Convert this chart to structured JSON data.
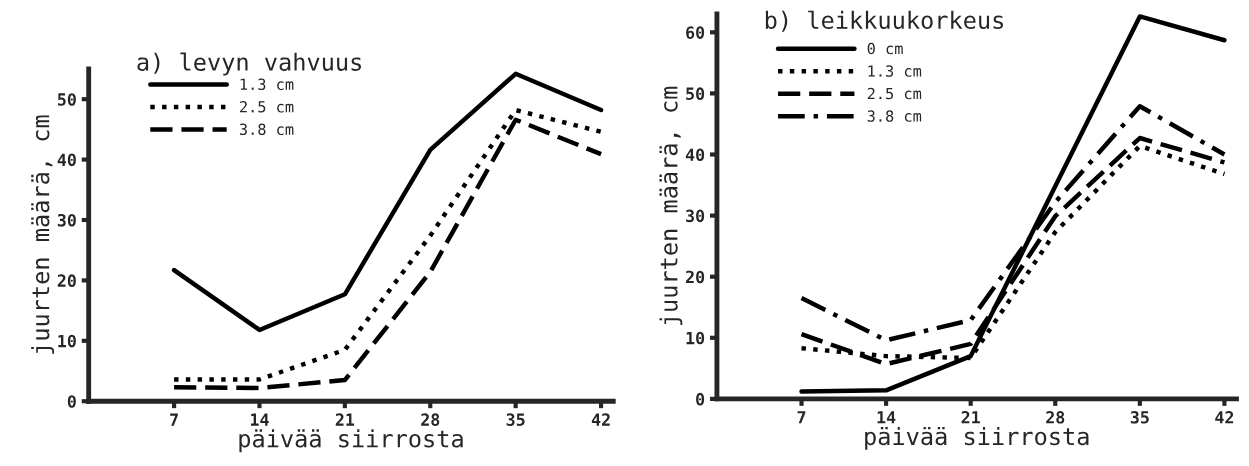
{
  "chart_data": [
    {
      "type": "line",
      "title": "a) levyn vahvuus",
      "xlabel": "päivää siirrosta",
      "ylabel": "juurten määrä, cm",
      "x": [
        7,
        14,
        21,
        28,
        35,
        42
      ],
      "xlim": [
        0,
        43
      ],
      "xticks": [
        7,
        14,
        21,
        28,
        35,
        42
      ],
      "ylim": [
        0,
        55
      ],
      "yticks": [
        0,
        10,
        20,
        30,
        40,
        50
      ],
      "legend": "top left",
      "grid": false,
      "series": [
        {
          "name": "1.3 cm",
          "color": "#000000",
          "line_style": "solid",
          "values": [
            21.7,
            11.8,
            17.7,
            41.6,
            54.2,
            48.2
          ]
        },
        {
          "name": "2.5 cm",
          "color": "#000000",
          "line_style": "dotted",
          "values": [
            3.6,
            3.6,
            8.5,
            27.4,
            48.2,
            44.6
          ]
        },
        {
          "name": "3.8 cm",
          "color": "#000000",
          "line_style": "dashed",
          "values": [
            2.3,
            2.2,
            3.5,
            21.4,
            46.6,
            40.9
          ]
        }
      ]
    },
    {
      "type": "line",
      "title": "b) leikkuukorkeus",
      "xlabel": "päivää siirrosta",
      "ylabel": "juurten määrä, cm",
      "x": [
        7,
        14,
        21,
        28,
        35,
        42
      ],
      "xlim": [
        0,
        43
      ],
      "xticks": [
        7,
        14,
        21,
        28,
        35,
        42
      ],
      "ylim": [
        0,
        63
      ],
      "yticks": [
        0,
        10,
        20,
        30,
        40,
        50,
        60
      ],
      "legend": "top left",
      "grid": false,
      "series": [
        {
          "name": "0 cm",
          "color": "#000000",
          "line_style": "solid",
          "values": [
            1.2,
            1.4,
            7.0,
            34.8,
            62.6,
            58.7
          ]
        },
        {
          "name": "1.3 cm",
          "color": "#000000",
          "line_style": "dotted",
          "values": [
            8.3,
            7.0,
            6.7,
            27.3,
            41.4,
            36.8
          ]
        },
        {
          "name": "2.5 cm",
          "color": "#000000",
          "line_style": "dashed",
          "values": [
            10.6,
            5.7,
            9.0,
            29.9,
            42.7,
            38.7
          ]
        },
        {
          "name": "3.8 cm",
          "color": "#000000",
          "line_style": "dashdot",
          "values": [
            16.5,
            9.6,
            12.9,
            32.2,
            47.9,
            40.0
          ]
        }
      ]
    }
  ]
}
